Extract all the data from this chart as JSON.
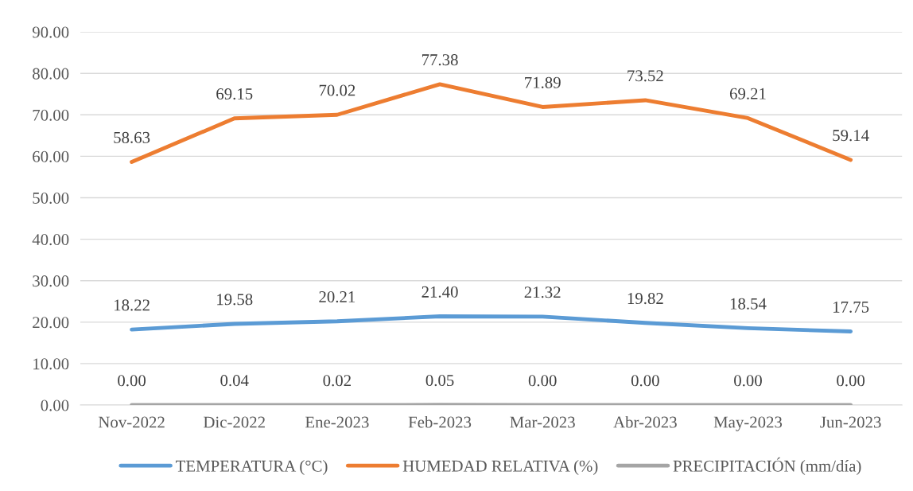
{
  "chart_data": {
    "type": "line",
    "categories": [
      "Nov-2022",
      "Dic-2022",
      "Ene-2023",
      "Feb-2023",
      "Mar-2023",
      "Abr-2023",
      "May-2023",
      "Jun-2023"
    ],
    "series": [
      {
        "name": "TEMPERATURA (°C)",
        "color": "#5b9bd5",
        "values": [
          18.22,
          19.58,
          20.21,
          21.4,
          21.32,
          19.82,
          18.54,
          17.75
        ],
        "value_labels": [
          "18.22",
          "19.58",
          "20.21",
          "21.40",
          "21.32",
          "19.82",
          "18.54",
          "17.75"
        ]
      },
      {
        "name": "HUMEDAD RELATIVA (%)",
        "color": "#ed7d31",
        "values": [
          58.63,
          69.15,
          70.02,
          77.38,
          71.89,
          73.52,
          69.21,
          59.14
        ],
        "value_labels": [
          "58.63",
          "69.15",
          "70.02",
          "77.38",
          "71.89",
          "73.52",
          "69.21",
          "59.14"
        ]
      },
      {
        "name": "PRECIPITACIÓN (mm/día)",
        "color": "#a5a5a5",
        "values": [
          0.0,
          0.04,
          0.02,
          0.05,
          0.0,
          0.0,
          0.0,
          0.0
        ],
        "value_labels": [
          "0.00",
          "0.04",
          "0.02",
          "0.05",
          "0.00",
          "0.00",
          "0.00",
          "0.00"
        ]
      }
    ],
    "ylim": [
      0,
      90
    ],
    "yticks": [
      {
        "value": 0,
        "label": "0.00"
      },
      {
        "value": 10,
        "label": "10.00"
      },
      {
        "value": 20,
        "label": "20.00"
      },
      {
        "value": 30,
        "label": "30.00"
      },
      {
        "value": 40,
        "label": "40.00"
      },
      {
        "value": 50,
        "label": "50.00"
      },
      {
        "value": 60,
        "label": "60.00"
      },
      {
        "value": 70,
        "label": "70.00"
      },
      {
        "value": 80,
        "label": "80.00"
      },
      {
        "value": 90,
        "label": "90.00"
      }
    ],
    "grid": "y",
    "legend": "bottom",
    "marker": "none",
    "line_style": "solid"
  }
}
